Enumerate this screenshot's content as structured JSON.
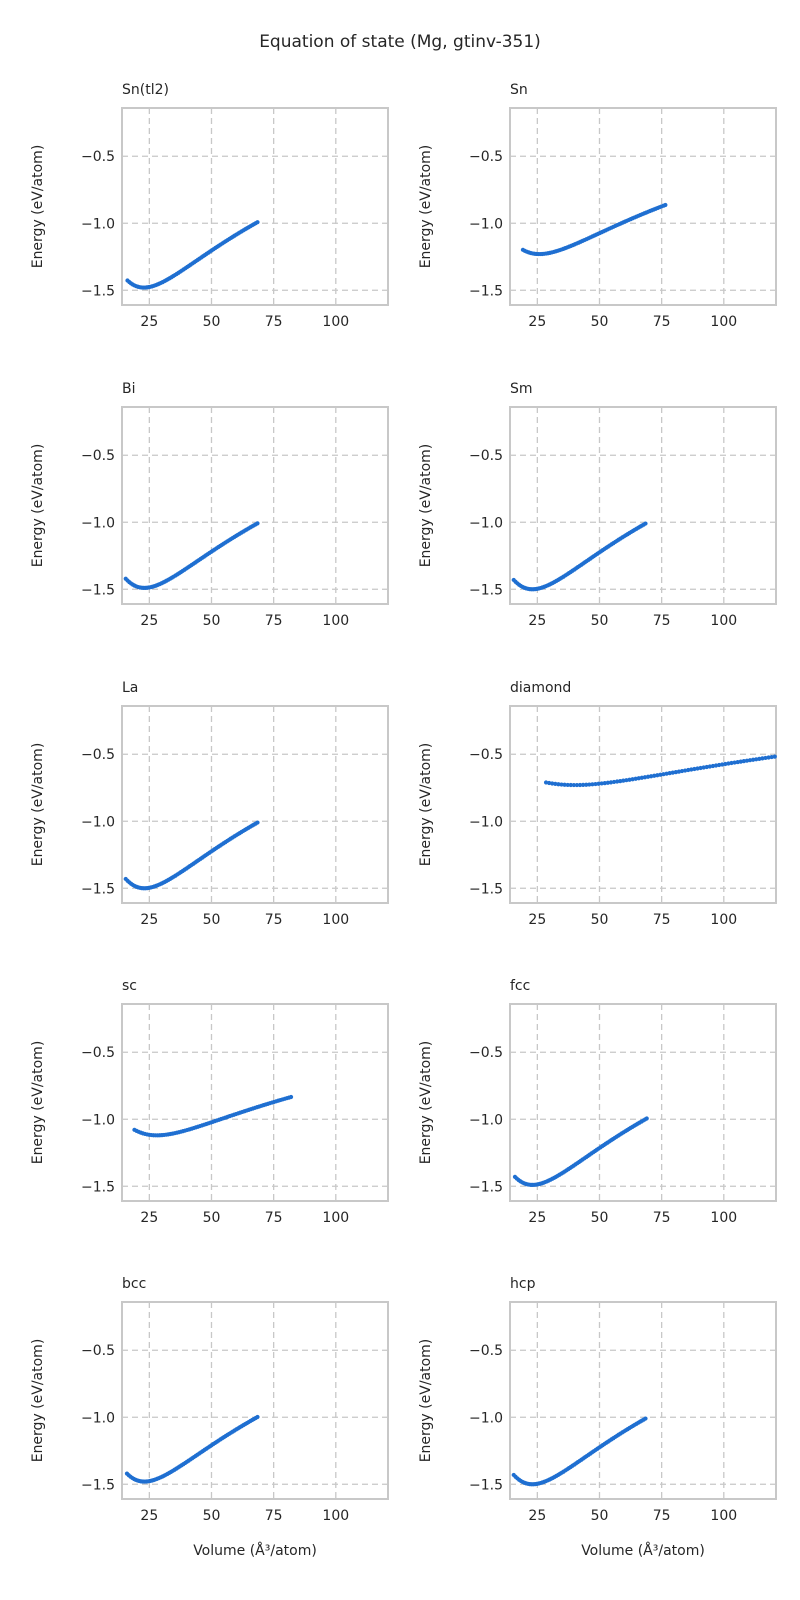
{
  "figure": {
    "title": "Equation of state (Mg, gtinv-351)",
    "marker_color": "#1f6fd1",
    "grid_color": "#c8c8c8",
    "frame_color": "#c8c8c8"
  },
  "chart_data": [
    {
      "type": "scatter",
      "title": "Sn(tl2)",
      "xlabel": "",
      "ylabel": "Energy (eV/atom)",
      "xlim": [
        14,
        121
      ],
      "ylim": [
        -1.61,
        -0.14
      ],
      "xticks": [
        25,
        50,
        75,
        100
      ],
      "yticks": [
        -1.5,
        -1.0,
        -0.5
      ],
      "grid": true,
      "curve": {
        "v_start": 16.2,
        "v_end": 68.5,
        "v0": 22.8,
        "e0": -1.48,
        "b": 0.57,
        "bp": 4.5,
        "n": 75
      }
    },
    {
      "type": "scatter",
      "title": "Sn",
      "xlabel": "",
      "ylabel": "Energy (eV/atom)",
      "xlim": [
        14,
        121
      ],
      "ylim": [
        -1.61,
        -0.14
      ],
      "xticks": [
        25,
        50,
        75,
        100
      ],
      "yticks": [
        -1.5,
        -1.0,
        -0.5
      ],
      "grid": true,
      "curve": {
        "v_start": 19.2,
        "v_end": 76.5,
        "v0": 25.8,
        "e0": -1.23,
        "b": 0.44,
        "bp": 4.6,
        "n": 75
      }
    },
    {
      "type": "scatter",
      "title": "Bi",
      "xlabel": "",
      "ylabel": "Energy (eV/atom)",
      "xlim": [
        14,
        121
      ],
      "ylim": [
        -1.61,
        -0.14
      ],
      "xticks": [
        25,
        50,
        75,
        100
      ],
      "yticks": [
        -1.5,
        -1.0,
        -0.5
      ],
      "grid": true,
      "curve": {
        "v_start": 15.5,
        "v_end": 68.5,
        "v0": 23.0,
        "e0": -1.49,
        "b": 0.57,
        "bp": 4.5,
        "n": 75
      }
    },
    {
      "type": "scatter",
      "title": "Sm",
      "xlabel": "",
      "ylabel": "Energy (eV/atom)",
      "xlim": [
        14,
        121
      ],
      "ylim": [
        -1.61,
        -0.14
      ],
      "xticks": [
        25,
        50,
        75,
        100
      ],
      "yticks": [
        -1.5,
        -1.0,
        -0.5
      ],
      "grid": true,
      "curve": {
        "v_start": 15.5,
        "v_end": 68.5,
        "v0": 23.0,
        "e0": -1.5,
        "b": 0.58,
        "bp": 4.5,
        "n": 75
      }
    },
    {
      "type": "scatter",
      "title": "La",
      "xlabel": "",
      "ylabel": "Energy (eV/atom)",
      "xlim": [
        14,
        121
      ],
      "ylim": [
        -1.61,
        -0.14
      ],
      "xticks": [
        25,
        50,
        75,
        100
      ],
      "yticks": [
        -1.5,
        -1.0,
        -0.5
      ],
      "grid": true,
      "curve": {
        "v_start": 15.5,
        "v_end": 68.5,
        "v0": 23.0,
        "e0": -1.5,
        "b": 0.58,
        "bp": 4.5,
        "n": 75
      }
    },
    {
      "type": "scatter",
      "title": "diamond",
      "xlabel": "",
      "ylabel": "Energy (eV/atom)",
      "xlim": [
        14,
        121
      ],
      "ylim": [
        -1.61,
        -0.14
      ],
      "xticks": [
        25,
        50,
        75,
        100
      ],
      "yticks": [
        -1.5,
        -1.0,
        -0.5
      ],
      "grid": true,
      "curve": {
        "v_start": 28.5,
        "v_end": 120.5,
        "v0": 40.0,
        "e0": -0.73,
        "b": 0.23,
        "bp": 3.6,
        "n": 75
      }
    },
    {
      "type": "scatter",
      "title": "sc",
      "xlabel": "",
      "ylabel": "Energy (eV/atom)",
      "xlim": [
        14,
        121
      ],
      "ylim": [
        -1.61,
        -0.14
      ],
      "xticks": [
        25,
        50,
        75,
        100
      ],
      "yticks": [
        -1.5,
        -1.0,
        -0.5
      ],
      "grid": true,
      "curve": {
        "v_start": 19.0,
        "v_end": 82.0,
        "v0": 28.0,
        "e0": -1.12,
        "b": 0.35,
        "bp": 4.6,
        "n": 75
      }
    },
    {
      "type": "scatter",
      "title": "fcc",
      "xlabel": "",
      "ylabel": "Energy (eV/atom)",
      "xlim": [
        14,
        121
      ],
      "ylim": [
        -1.61,
        -0.14
      ],
      "xticks": [
        25,
        50,
        75,
        100
      ],
      "yticks": [
        -1.5,
        -1.0,
        -0.5
      ],
      "grid": true,
      "curve": {
        "v_start": 16.0,
        "v_end": 69.0,
        "v0": 23.0,
        "e0": -1.49,
        "b": 0.58,
        "bp": 4.5,
        "n": 75
      }
    },
    {
      "type": "scatter",
      "title": "bcc",
      "xlabel": "Volume (Å³/atom)",
      "ylabel": "Energy (eV/atom)",
      "xlim": [
        14,
        121
      ],
      "ylim": [
        -1.61,
        -0.14
      ],
      "xticks": [
        25,
        50,
        75,
        100
      ],
      "yticks": [
        -1.5,
        -1.0,
        -0.5
      ],
      "grid": true,
      "curve": {
        "v_start": 16.0,
        "v_end": 68.5,
        "v0": 23.0,
        "e0": -1.48,
        "b": 0.57,
        "bp": 4.5,
        "n": 75
      }
    },
    {
      "type": "scatter",
      "title": "hcp",
      "xlabel": "Volume (Å³/atom)",
      "ylabel": "Energy (eV/atom)",
      "xlim": [
        14,
        121
      ],
      "ylim": [
        -1.61,
        -0.14
      ],
      "xticks": [
        25,
        50,
        75,
        100
      ],
      "yticks": [
        -1.5,
        -1.0,
        -0.5
      ],
      "grid": true,
      "curve": {
        "v_start": 15.5,
        "v_end": 68.5,
        "v0": 23.0,
        "e0": -1.5,
        "b": 0.58,
        "bp": 4.5,
        "n": 75
      }
    }
  ]
}
